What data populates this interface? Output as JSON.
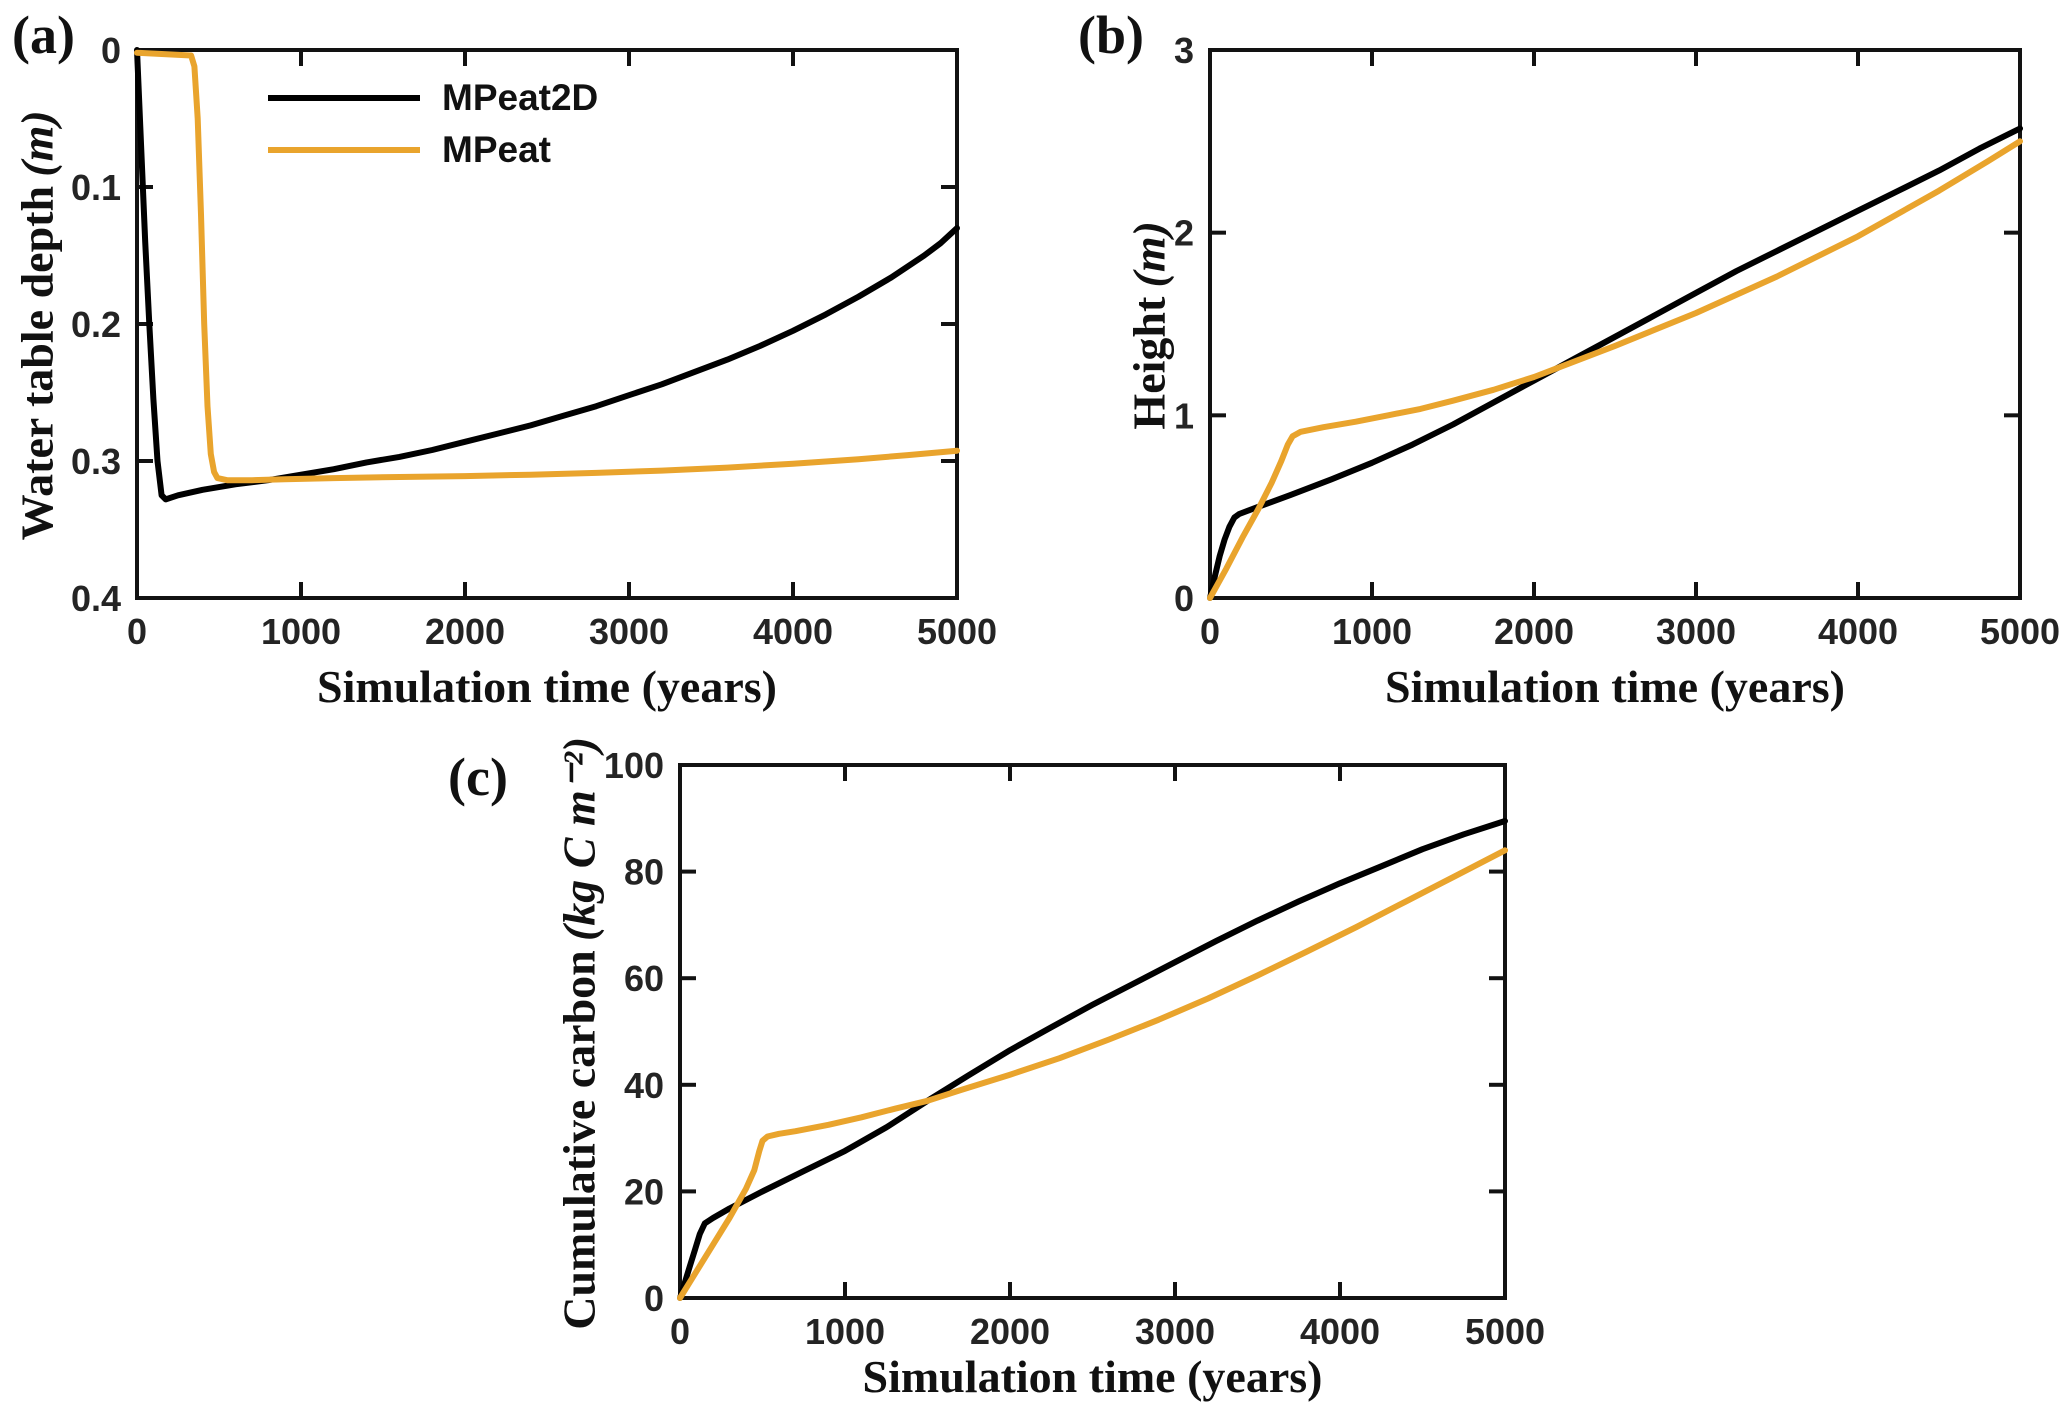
{
  "figure_bg": "#ffffff",
  "axis_color": "#121212",
  "text_color": "#242424",
  "legend": {
    "items": [
      {
        "label": "MPeat2D",
        "color": "#000000"
      },
      {
        "label": "MPeat",
        "color": "#E9A42D"
      }
    ]
  },
  "chart_data": [
    {
      "id": "a",
      "panel_label": "(a)",
      "type": "line",
      "xlabel": "Simulation time (years)",
      "ylabel": "Water table depth",
      "ylabel_unit": "(m)",
      "xlim": [
        0,
        5000
      ],
      "ylim": [
        0,
        0.4
      ],
      "y_inverted": true,
      "grid": false,
      "legend_position": "upper-left-inside",
      "xticks": [
        0,
        1000,
        2000,
        3000,
        4000,
        5000
      ],
      "xtick_labels": [
        "0",
        "1000",
        "2000",
        "3000",
        "4000",
        "5000"
      ],
      "yticks": [
        0,
        0.1,
        0.2,
        0.3,
        0.4
      ],
      "ytick_labels": [
        "0",
        "0.1",
        "0.2",
        "0.3",
        "0.4"
      ],
      "series": [
        {
          "name": "MPeat2D",
          "color": "#000000",
          "points": [
            [
              0,
              0
            ],
            [
              25,
              0.07
            ],
            [
              50,
              0.14
            ],
            [
              75,
              0.2
            ],
            [
              100,
              0.255
            ],
            [
              125,
              0.3
            ],
            [
              150,
              0.325
            ],
            [
              175,
              0.328
            ],
            [
              250,
              0.325
            ],
            [
              400,
              0.321
            ],
            [
              600,
              0.317
            ],
            [
              800,
              0.314
            ],
            [
              1000,
              0.31
            ],
            [
              1200,
              0.306
            ],
            [
              1400,
              0.301
            ],
            [
              1600,
              0.297
            ],
            [
              1800,
              0.292
            ],
            [
              2000,
              0.286
            ],
            [
              2200,
              0.28
            ],
            [
              2400,
              0.274
            ],
            [
              2600,
              0.267
            ],
            [
              2800,
              0.26
            ],
            [
              3000,
              0.252
            ],
            [
              3200,
              0.244
            ],
            [
              3400,
              0.235
            ],
            [
              3600,
              0.226
            ],
            [
              3800,
              0.216
            ],
            [
              4000,
              0.205
            ],
            [
              4200,
              0.193
            ],
            [
              4400,
              0.18
            ],
            [
              4600,
              0.166
            ],
            [
              4800,
              0.15
            ],
            [
              4900,
              0.141
            ],
            [
              5000,
              0.13
            ]
          ]
        },
        {
          "name": "MPeat",
          "color": "#E9A42D",
          "points": [
            [
              0,
              0.002
            ],
            [
              330,
              0.004
            ],
            [
              350,
              0.012
            ],
            [
              370,
              0.05
            ],
            [
              390,
              0.12
            ],
            [
              410,
              0.2
            ],
            [
              430,
              0.26
            ],
            [
              450,
              0.295
            ],
            [
              470,
              0.308
            ],
            [
              490,
              0.3125
            ],
            [
              550,
              0.314
            ],
            [
              700,
              0.314
            ],
            [
              900,
              0.3133
            ],
            [
              1200,
              0.3125
            ],
            [
              1600,
              0.3117
            ],
            [
              2000,
              0.311
            ],
            [
              2400,
              0.31
            ],
            [
              2800,
              0.3087
            ],
            [
              3200,
              0.307
            ],
            [
              3600,
              0.3048
            ],
            [
              4000,
              0.302
            ],
            [
              4400,
              0.2987
            ],
            [
              4700,
              0.2957
            ],
            [
              5000,
              0.2925
            ]
          ]
        }
      ]
    },
    {
      "id": "b",
      "panel_label": "(b)",
      "type": "line",
      "xlabel": "Simulation time (years)",
      "ylabel": "Height",
      "ylabel_unit": "(m)",
      "xlim": [
        0,
        5000
      ],
      "ylim": [
        0,
        3
      ],
      "y_inverted": false,
      "grid": false,
      "xticks": [
        0,
        1000,
        2000,
        3000,
        4000,
        5000
      ],
      "xtick_labels": [
        "0",
        "1000",
        "2000",
        "3000",
        "4000",
        "5000"
      ],
      "yticks": [
        0,
        1,
        2,
        3
      ],
      "ytick_labels": [
        "0",
        "1",
        "2",
        "3"
      ],
      "series": [
        {
          "name": "MPeat2D",
          "color": "#000000",
          "points": [
            [
              0,
              0
            ],
            [
              30,
              0.12
            ],
            [
              60,
              0.23
            ],
            [
              90,
              0.32
            ],
            [
              120,
              0.39
            ],
            [
              150,
              0.44
            ],
            [
              180,
              0.46
            ],
            [
              300,
              0.5
            ],
            [
              500,
              0.565
            ],
            [
              750,
              0.65
            ],
            [
              1000,
              0.74
            ],
            [
              1250,
              0.84
            ],
            [
              1500,
              0.95
            ],
            [
              1750,
              1.07
            ],
            [
              2000,
              1.19
            ],
            [
              2250,
              1.31
            ],
            [
              2500,
              1.43
            ],
            [
              2750,
              1.55
            ],
            [
              3000,
              1.67
            ],
            [
              3250,
              1.79
            ],
            [
              3500,
              1.9
            ],
            [
              3750,
              2.01
            ],
            [
              4000,
              2.12
            ],
            [
              4250,
              2.23
            ],
            [
              4500,
              2.34
            ],
            [
              4750,
              2.46
            ],
            [
              5000,
              2.57
            ]
          ]
        },
        {
          "name": "MPeat",
          "color": "#E9A42D",
          "points": [
            [
              0,
              0
            ],
            [
              100,
              0.16
            ],
            [
              200,
              0.33
            ],
            [
              300,
              0.49
            ],
            [
              380,
              0.63
            ],
            [
              440,
              0.75
            ],
            [
              480,
              0.84
            ],
            [
              510,
              0.885
            ],
            [
              560,
              0.91
            ],
            [
              700,
              0.935
            ],
            [
              900,
              0.965
            ],
            [
              1100,
              1.0
            ],
            [
              1300,
              1.035
            ],
            [
              1500,
              1.08
            ],
            [
              1750,
              1.14
            ],
            [
              2000,
              1.21
            ],
            [
              2500,
              1.38
            ],
            [
              3000,
              1.56
            ],
            [
              3500,
              1.76
            ],
            [
              4000,
              1.98
            ],
            [
              4500,
              2.23
            ],
            [
              4800,
              2.39
            ],
            [
              5000,
              2.5
            ]
          ]
        }
      ]
    },
    {
      "id": "c",
      "panel_label": "(c)",
      "type": "line",
      "xlabel": "Simulation time (years)",
      "ylabel": "Cumulative carbon",
      "ylabel_unit": "(kg C m⁻²)",
      "xlim": [
        0,
        5000
      ],
      "ylim": [
        0,
        100
      ],
      "y_inverted": false,
      "grid": false,
      "xticks": [
        0,
        1000,
        2000,
        3000,
        4000,
        5000
      ],
      "xtick_labels": [
        "0",
        "1000",
        "2000",
        "3000",
        "4000",
        "5000"
      ],
      "yticks": [
        0,
        20,
        40,
        60,
        80,
        100
      ],
      "ytick_labels": [
        "0",
        "20",
        "40",
        "60",
        "80",
        "100"
      ],
      "series": [
        {
          "name": "MPeat2D",
          "color": "#000000",
          "points": [
            [
              0,
              0
            ],
            [
              30,
              3
            ],
            [
              60,
              6
            ],
            [
              90,
              9
            ],
            [
              120,
              12
            ],
            [
              150,
              14
            ],
            [
              200,
              15
            ],
            [
              300,
              16.8
            ],
            [
              500,
              20
            ],
            [
              750,
              23.8
            ],
            [
              1000,
              27.6
            ],
            [
              1250,
              32
            ],
            [
              1500,
              37
            ],
            [
              1750,
              41.8
            ],
            [
              2000,
              46.5
            ],
            [
              2250,
              50.8
            ],
            [
              2500,
              55
            ],
            [
              2750,
              59
            ],
            [
              3000,
              63
            ],
            [
              3250,
              67
            ],
            [
              3500,
              70.8
            ],
            [
              3750,
              74.4
            ],
            [
              4000,
              77.8
            ],
            [
              4250,
              81
            ],
            [
              4500,
              84.2
            ],
            [
              4750,
              87
            ],
            [
              5000,
              89.5
            ]
          ]
        },
        {
          "name": "MPeat",
          "color": "#E9A42D",
          "points": [
            [
              0,
              0
            ],
            [
              100,
              5
            ],
            [
              200,
              10
            ],
            [
              300,
              15
            ],
            [
              400,
              20.5
            ],
            [
              450,
              24
            ],
            [
              480,
              27.5
            ],
            [
              500,
              29.5
            ],
            [
              530,
              30.3
            ],
            [
              600,
              30.8
            ],
            [
              700,
              31.3
            ],
            [
              900,
              32.5
            ],
            [
              1100,
              33.9
            ],
            [
              1300,
              35.5
            ],
            [
              1500,
              37
            ],
            [
              1700,
              39
            ],
            [
              2000,
              41.9
            ],
            [
              2300,
              45
            ],
            [
              2600,
              48.5
            ],
            [
              2900,
              52.2
            ],
            [
              3200,
              56.2
            ],
            [
              3500,
              60.5
            ],
            [
              3800,
              65
            ],
            [
              4100,
              69.6
            ],
            [
              4400,
              74.4
            ],
            [
              4700,
              79.2
            ],
            [
              5000,
              84
            ]
          ]
        }
      ]
    }
  ]
}
